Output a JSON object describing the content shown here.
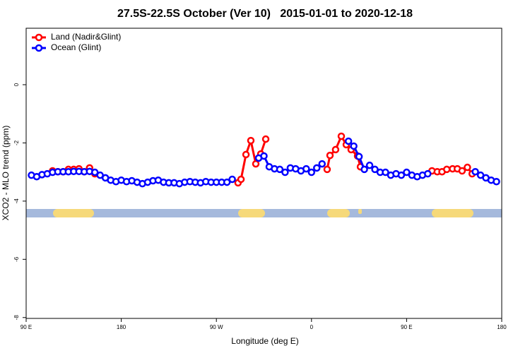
{
  "chart_data": {
    "type": "line",
    "title": "27.5S-22.5S October (Ver 10)   2015-01-01 to 2020-12-18",
    "xlabel": "Longitude (deg E)",
    "ylabel": "XCO2 - MLO trend (ppm)",
    "xlim": [
      90,
      540
    ],
    "ylim": [
      -8.03,
      1.94
    ],
    "xticks": [
      {
        "value": 90,
        "label": "90 E"
      },
      180,
      {
        "value": 270,
        "label": "90 W"
      },
      {
        "value": 360,
        "label": "0"
      },
      {
        "value": 450,
        "label": "90 E"
      },
      {
        "value": 540,
        "label": "180"
      }
    ],
    "yticks": [
      -8,
      -6,
      -4,
      -2,
      0
    ],
    "legend": "top-left",
    "series": [
      {
        "name": "Land (Nadir&Glint)",
        "color": "#ff0000",
        "x": [
          115,
          120,
          125,
          130,
          135,
          140,
          145,
          150,
          155,
          null,
          290.5,
          293.3,
          298,
          302.6,
          307.3,
          312,
          316.7,
          null,
          374.8,
          377.5,
          382.8,
          388.2,
          392.9,
          397.5,
          403.6,
          406.3,
          null,
          474,
          479,
          483.5,
          488,
          493.5,
          498,
          502.5,
          507.5,
          512
        ],
        "values": [
          -2.96,
          -2.99,
          -2.99,
          -2.91,
          -2.91,
          -2.89,
          -2.99,
          -2.86,
          -3.06,
          null,
          -3.37,
          -3.25,
          -2.4,
          -1.92,
          -2.72,
          -2.38,
          -1.87,
          null,
          -2.91,
          -2.43,
          -2.23,
          -1.77,
          -2.06,
          -2.23,
          -2.45,
          -2.82,
          null,
          -2.96,
          -2.99,
          -2.99,
          -2.91,
          -2.89,
          -2.89,
          -2.96,
          -2.84,
          -3.06
        ]
      },
      {
        "name": "Ocean (Glint)",
        "color": "#0000ff",
        "x": [
          95,
          100,
          105,
          110,
          115,
          120,
          125,
          130,
          135,
          140,
          145,
          150,
          155,
          160,
          165,
          170,
          175,
          180,
          185,
          190,
          195,
          200,
          205,
          210,
          215,
          220,
          225,
          230,
          235,
          240,
          245,
          250,
          255,
          260,
          265,
          270,
          275,
          280,
          285,
          290,
          295,
          300,
          305,
          310,
          315,
          320,
          325,
          330,
          335,
          340,
          345,
          350,
          355,
          360,
          365,
          370,
          375,
          380,
          385,
          390,
          395,
          400,
          405,
          410,
          415,
          420,
          425,
          430,
          435,
          440,
          445,
          450,
          455,
          460,
          465,
          470,
          475,
          480,
          485,
          490,
          495,
          500,
          505,
          510,
          515,
          520,
          525,
          530,
          535
        ],
        "values": [
          -3.11,
          -3.16,
          -3.09,
          -3.06,
          -3.01,
          -2.99,
          -2.99,
          -2.99,
          -2.98,
          -2.98,
          -2.99,
          -2.98,
          -3.01,
          -3.11,
          -3.2,
          -3.28,
          -3.33,
          -3.28,
          -3.33,
          -3.3,
          -3.35,
          -3.4,
          -3.35,
          -3.3,
          -3.28,
          -3.35,
          -3.37,
          -3.37,
          -3.4,
          -3.35,
          -3.33,
          -3.35,
          -3.37,
          -3.33,
          -3.35,
          -3.35,
          -3.35,
          -3.35,
          -3.25,
          null,
          null,
          null,
          null,
          -2.52,
          -2.45,
          -2.82,
          -2.89,
          -2.91,
          -3.01,
          -2.86,
          -2.89,
          -2.96,
          -2.89,
          -3.01,
          -2.86,
          -2.72,
          null,
          null,
          null,
          null,
          -1.94,
          -2.11,
          -2.47,
          -2.91,
          -2.77,
          -2.91,
          -3.01,
          -3.01,
          -3.11,
          -3.06,
          -3.11,
          -3.01,
          -3.11,
          -3.16,
          -3.11,
          -3.06,
          null,
          null,
          null,
          null,
          null,
          null,
          null,
          null,
          -2.99,
          -3.11,
          -3.2,
          -3.28,
          -3.33
        ]
      }
    ]
  }
}
